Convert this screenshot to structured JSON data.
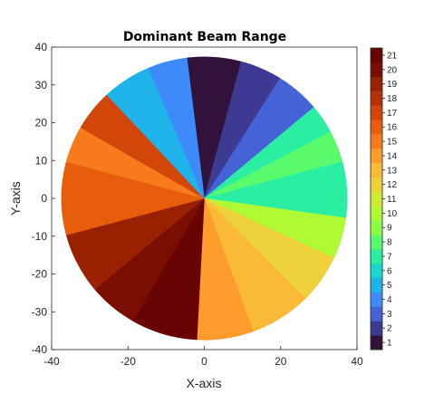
{
  "chart_data": {
    "type": "heatmap",
    "title": "Dominant Beam Range",
    "xlabel": "X-axis",
    "ylabel": "Y-axis",
    "xlim": [
      -40,
      40
    ],
    "ylim": [
      -40,
      40
    ],
    "xticks": [
      -40,
      -20,
      0,
      20,
      40
    ],
    "yticks": [
      -40,
      -30,
      -20,
      -10,
      0,
      10,
      20,
      30,
      40
    ],
    "colorbar": {
      "min": 1,
      "max": 21,
      "ticks": [
        "1",
        "2",
        "3",
        "4",
        "5",
        "6",
        "7",
        "8",
        "9",
        "10",
        "11",
        "12",
        "13",
        "14",
        "15",
        "16",
        "17",
        "18",
        "19",
        "20",
        "21"
      ],
      "colors": [
        "#30123b",
        "#3d3a94",
        "#4662d7",
        "#3e8afa",
        "#1fb3e9",
        "#18d6cb",
        "#2aefa2",
        "#59fb6c",
        "#8dff43",
        "#b0f935",
        "#d1e935",
        "#edd03a",
        "#fbb938",
        "#fe9b2d",
        "#f77b1c",
        "#e85d0c",
        "#d2460a",
        "#b93205",
        "#9a2002",
        "#7a0e02",
        "#680403"
      ],
      "location": "right"
    },
    "regions": [
      {
        "angle_from": 75,
        "angle_to": 97,
        "value": 1,
        "note": "top center strip"
      },
      {
        "angle_from": 58,
        "angle_to": 75,
        "value": 2
      },
      {
        "angle_from": 40,
        "angle_to": 58,
        "value": 3
      },
      {
        "angle_from": 28,
        "angle_to": 40,
        "value": 7
      },
      {
        "angle_from": 15,
        "angle_to": 28,
        "value": 8
      },
      {
        "angle_from": -8,
        "angle_to": 15,
        "value": 7
      },
      {
        "angle_from": -25,
        "angle_to": -8,
        "value": 10
      },
      {
        "angle_from": -45,
        "angle_to": -25,
        "value": 12
      },
      {
        "angle_from": -70,
        "angle_to": -45,
        "value": 13
      },
      {
        "angle_from": -93,
        "angle_to": -70,
        "value": 14
      },
      {
        "angle_from": -120,
        "angle_to": -93,
        "value": 21
      },
      {
        "angle_from": -140,
        "angle_to": -120,
        "value": 20
      },
      {
        "angle_from": -165,
        "angle_to": -140,
        "value": 19
      },
      {
        "angle_from": 165,
        "angle_to": 195,
        "value": 16
      },
      {
        "angle_from": 150,
        "angle_to": 165,
        "value": 15
      },
      {
        "angle_from": 133,
        "angle_to": 150,
        "value": 17
      },
      {
        "angle_from": 113,
        "angle_to": 133,
        "value": 5
      },
      {
        "angle_from": 97,
        "angle_to": 113,
        "value": 4
      }
    ]
  }
}
